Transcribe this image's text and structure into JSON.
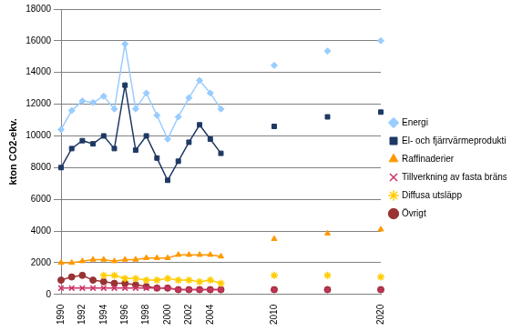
{
  "chart_data": {
    "type": "line",
    "y_label": "kton CO2-ekv.",
    "categories": [
      "1990",
      null,
      "1992",
      null,
      "1994",
      null,
      "1996",
      null,
      "1998",
      null,
      "2000",
      null,
      "2002",
      null,
      "2004",
      null,
      null,
      null,
      null,
      null,
      "2010",
      null,
      null,
      null,
      null,
      null,
      null,
      null,
      null,
      null,
      "2020"
    ],
    "ylim": [
      0,
      18000
    ],
    "yticks": [
      0,
      2000,
      4000,
      6000,
      8000,
      10000,
      12000,
      14000,
      16000,
      18000
    ],
    "grid": true,
    "legend": "right",
    "series": [
      {
        "name": "Energi",
        "color": "#99ccff",
        "marker": "diamond",
        "values": [
          10400,
          11600,
          12200,
          12100,
          12500,
          11700,
          15800,
          11700,
          12700,
          11300,
          9800,
          11200,
          12400,
          13500,
          12700,
          11700,
          null,
          null,
          null,
          null,
          14450,
          null,
          null,
          null,
          null,
          15350,
          null,
          null,
          null,
          null,
          16000
        ]
      },
      {
        "name": "El- och fjärrvärmeproduktion",
        "color": "#1f3864",
        "marker": "square",
        "values": [
          8000,
          9200,
          9700,
          9500,
          10000,
          9200,
          13200,
          9100,
          10000,
          8600,
          7200,
          8400,
          9600,
          10700,
          9800,
          8900,
          null,
          null,
          null,
          null,
          10600,
          null,
          null,
          null,
          null,
          11200,
          null,
          null,
          null,
          null,
          11500
        ]
      },
      {
        "name": "Raffinaderier",
        "color": "#ff9900",
        "marker": "triangle",
        "values": [
          2000,
          2000,
          2100,
          2200,
          2200,
          2100,
          2200,
          2200,
          2300,
          2300,
          2300,
          2500,
          2500,
          2500,
          2500,
          2400,
          null,
          null,
          null,
          null,
          3500,
          null,
          null,
          null,
          null,
          3850,
          null,
          null,
          null,
          null,
          4100
        ]
      },
      {
        "name": "Tillverkning av fasta bränslen",
        "color": "#cc3366",
        "marker": "x",
        "values": [
          400,
          400,
          400,
          400,
          400,
          400,
          400,
          400,
          400,
          400,
          400,
          300,
          300,
          300,
          300,
          300,
          null,
          null,
          null,
          null,
          300,
          null,
          null,
          null,
          null,
          300,
          null,
          null,
          null,
          null,
          300
        ]
      },
      {
        "name": "Diffusa utsläpp",
        "color": "#ffcc00",
        "marker": "star",
        "values": [
          null,
          null,
          null,
          null,
          1200,
          1200,
          1000,
          1000,
          900,
          900,
          1000,
          900,
          900,
          800,
          900,
          700,
          null,
          null,
          null,
          null,
          1200,
          null,
          null,
          null,
          null,
          1200,
          null,
          null,
          null,
          null,
          1100
        ]
      },
      {
        "name": "Övrigt",
        "color": "#993333",
        "marker": "circle",
        "values": [
          900,
          1100,
          1200,
          900,
          800,
          700,
          700,
          600,
          500,
          400,
          400,
          300,
          300,
          300,
          300,
          300,
          null,
          null,
          null,
          null,
          300,
          null,
          null,
          null,
          null,
          300,
          null,
          null,
          null,
          null,
          300
        ]
      }
    ]
  }
}
